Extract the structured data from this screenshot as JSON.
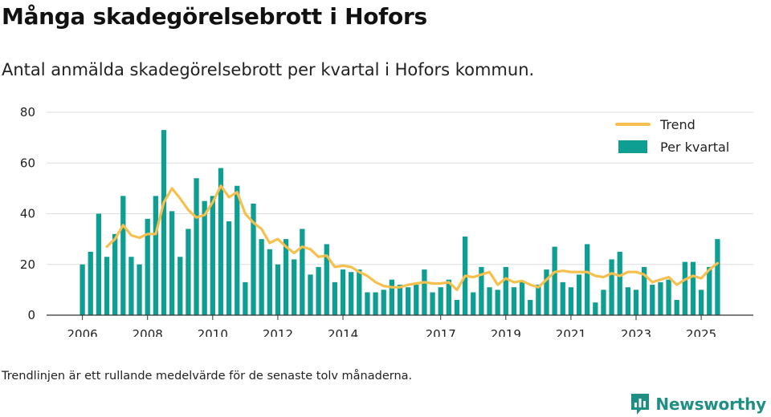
{
  "header": {
    "title": "Många skadegörelsebrott i Hofors",
    "subtitle": "Antal anmälda skadegörelsebrott per kvartal i Hofors kommun."
  },
  "footer": {
    "note": "Trendlinjen är ett rullande medelvärde för de senaste tolv månaderna.",
    "brand": "Newsworthy"
  },
  "colors": {
    "bar": "#0e9f92",
    "trend": "#f5c04e",
    "grid": "#dddddd",
    "axis": "#333333",
    "brand": "#1f8f83"
  },
  "chart_data": {
    "type": "bar",
    "title": "Antal anmälda skadegörelsebrott per kvartal i Hofors kommun.",
    "xlabel": "",
    "ylabel": "",
    "ylim": [
      0,
      80
    ],
    "yticks": [
      0,
      20,
      40,
      60,
      80
    ],
    "xticks": [
      {
        "label": "2006",
        "x": 2006.0
      },
      {
        "label": "2008",
        "x": 2008.0
      },
      {
        "label": "2010",
        "x": 2010.0
      },
      {
        "label": "2012",
        "x": 2012.0
      },
      {
        "label": "2014",
        "x": 2014.0
      },
      {
        "label": "2017",
        "x": 2017.0
      },
      {
        "label": "2019",
        "x": 2019.0
      },
      {
        "label": "2021",
        "x": 2021.0
      },
      {
        "label": "2023",
        "x": 2023.0
      },
      {
        "label": "2025",
        "x": 2025.0
      }
    ],
    "xlim": [
      2004.9,
      2026.6
    ],
    "start_year": 2006,
    "legend": [
      {
        "name": "Trend",
        "kind": "line"
      },
      {
        "name": "Per kvartal",
        "kind": "bar"
      }
    ],
    "legend_position": "top-right",
    "series": [
      {
        "name": "Per kvartal",
        "type": "bar",
        "values": [
          20,
          25,
          40,
          23,
          32,
          47,
          23,
          20,
          38,
          47,
          73,
          41,
          23,
          34,
          54,
          45,
          47,
          58,
          37,
          51,
          13,
          44,
          30,
          26,
          20,
          30,
          22,
          34,
          16,
          19,
          28,
          13,
          18,
          17,
          18,
          9,
          9,
          10,
          14,
          12,
          11,
          12,
          18,
          9,
          11,
          14,
          6,
          31,
          9,
          19,
          11,
          10,
          19,
          11,
          13,
          6,
          12,
          18,
          27,
          13,
          11,
          16,
          28,
          5,
          10,
          22,
          25,
          11,
          10,
          19,
          12,
          13,
          14,
          6,
          21,
          21,
          10,
          19,
          30
        ]
      },
      {
        "name": "Trend",
        "type": "line",
        "values": [
          null,
          null,
          null,
          27,
          30,
          35.5,
          31.5,
          30.5,
          32,
          32,
          44.5,
          50,
          46,
          41.5,
          38.5,
          39.5,
          44.5,
          51,
          46.5,
          48.5,
          40,
          36.5,
          34,
          28.5,
          30,
          27,
          24.5,
          27,
          26,
          23,
          23.5,
          19,
          19.5,
          19,
          17,
          15.5,
          13,
          11.5,
          11,
          11,
          12,
          12.5,
          13,
          12.5,
          12.5,
          13,
          10,
          15.5,
          15,
          16,
          17,
          12,
          14.5,
          13,
          13.5,
          12,
          11,
          14,
          17,
          17.5,
          17,
          17,
          17,
          15.5,
          15,
          16.5,
          15.5,
          17,
          17,
          16,
          13,
          14,
          15,
          12,
          14,
          15.5,
          14.5,
          18,
          20.5
        ]
      }
    ]
  }
}
